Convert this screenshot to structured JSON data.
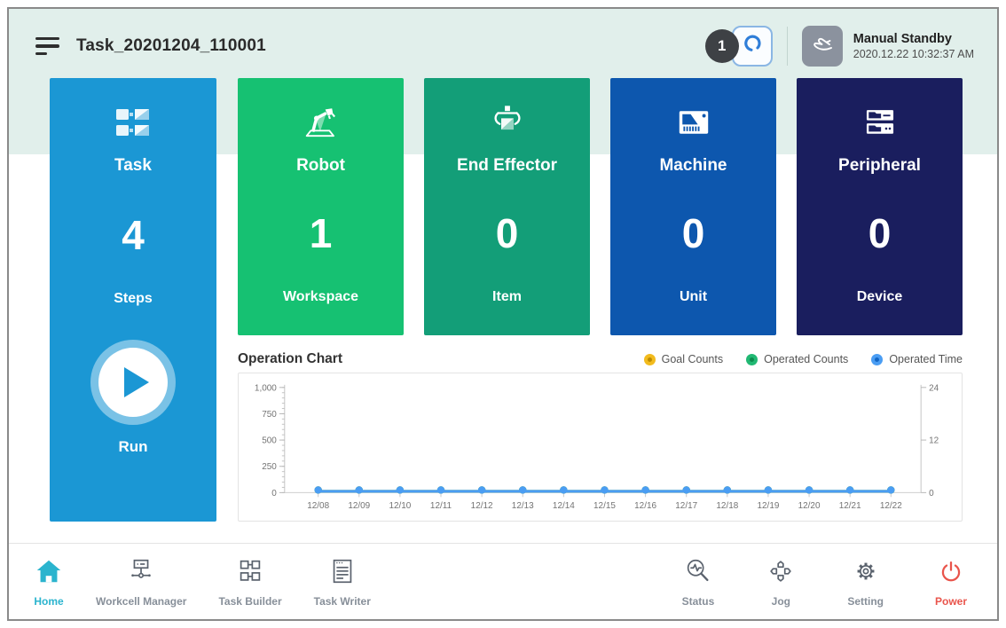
{
  "window": {
    "title": "Task_20201204_110001"
  },
  "topbar": {
    "badge_count": "1",
    "robot_button_icon": "gripper-icon",
    "mode_icon": "hand-icon",
    "mode_label": "Manual Standby",
    "datetime": "2020.12.22 10:32:37 AM"
  },
  "cards": [
    {
      "id": "task",
      "title": "Task",
      "value": "4",
      "unit": "Steps",
      "color": "#1b97d4",
      "icon": "task-steps-icon"
    },
    {
      "id": "robot",
      "title": "Robot",
      "value": "1",
      "unit": "Workspace",
      "color": "#16c172",
      "icon": "robot-arm-icon"
    },
    {
      "id": "end-effector",
      "title": "End Effector",
      "value": "0",
      "unit": "Item",
      "color": "#139e78",
      "icon": "end-effector-gripper-icon"
    },
    {
      "id": "machine",
      "title": "Machine",
      "value": "0",
      "unit": "Unit",
      "color": "#0d57ae",
      "icon": "machine-icon"
    },
    {
      "id": "peripheral",
      "title": "Peripheral",
      "value": "0",
      "unit": "Device",
      "color": "#1a1e5e",
      "icon": "peripheral-stack-icon"
    }
  ],
  "run_button": {
    "label": "Run"
  },
  "chart": {
    "title": "Operation Chart",
    "legend": [
      {
        "label": "Goal Counts",
        "color": "#f2bb1d",
        "center": "#bd8b00"
      },
      {
        "label": "Operated Counts",
        "color": "#21b873",
        "center": "#0c8b4e"
      },
      {
        "label": "Operated Time",
        "color": "#4a9df3",
        "center": "#1266c5"
      }
    ]
  },
  "chart_data": {
    "type": "line",
    "title": "Operation Chart",
    "x": [
      "12/08",
      "12/09",
      "12/10",
      "12/11",
      "12/12",
      "12/13",
      "12/14",
      "12/15",
      "12/16",
      "12/17",
      "12/18",
      "12/19",
      "12/20",
      "12/21",
      "12/22"
    ],
    "series": [
      {
        "name": "Goal Counts",
        "color": "#f2bb1d",
        "axis": "left",
        "values": [
          0,
          0,
          0,
          0,
          0,
          0,
          0,
          0,
          0,
          0,
          0,
          0,
          0,
          0,
          0
        ]
      },
      {
        "name": "Operated Counts",
        "color": "#21b873",
        "axis": "left",
        "values": [
          0,
          0,
          0,
          0,
          0,
          0,
          0,
          0,
          0,
          0,
          0,
          0,
          0,
          0,
          0
        ]
      },
      {
        "name": "Operated Time",
        "color": "#4a9df3",
        "axis": "right",
        "values": [
          0,
          0,
          0,
          0,
          0,
          0,
          0,
          0,
          0,
          0,
          0,
          0,
          0,
          0,
          0
        ]
      }
    ],
    "y_left": {
      "min": 0,
      "max": 1000,
      "ticks": [
        0,
        250,
        500,
        750,
        1000
      ],
      "tick_labels": [
        "0",
        "250",
        "500",
        "750",
        "1,000"
      ],
      "minor_step": 50
    },
    "y_right": {
      "min": 0,
      "max": 24,
      "ticks": [
        0,
        12,
        24
      ],
      "tick_labels": [
        "0",
        "12",
        "24"
      ]
    },
    "grid": false,
    "legend_position": "top-right"
  },
  "bottom_nav": [
    {
      "id": "home",
      "label": "Home",
      "active": true,
      "color": "#2bb4ce"
    },
    {
      "id": "workcell-manager",
      "label": "Workcell Manager",
      "active": false
    },
    {
      "id": "task-builder",
      "label": "Task Builder",
      "active": false
    },
    {
      "id": "task-writer",
      "label": "Task Writer",
      "active": false
    },
    {
      "id": "status",
      "label": "Status",
      "active": false
    },
    {
      "id": "jog",
      "label": "Jog",
      "active": false
    },
    {
      "id": "setting",
      "label": "Setting",
      "active": false
    },
    {
      "id": "power",
      "label": "Power",
      "active": false,
      "color": "#e9544b"
    }
  ]
}
